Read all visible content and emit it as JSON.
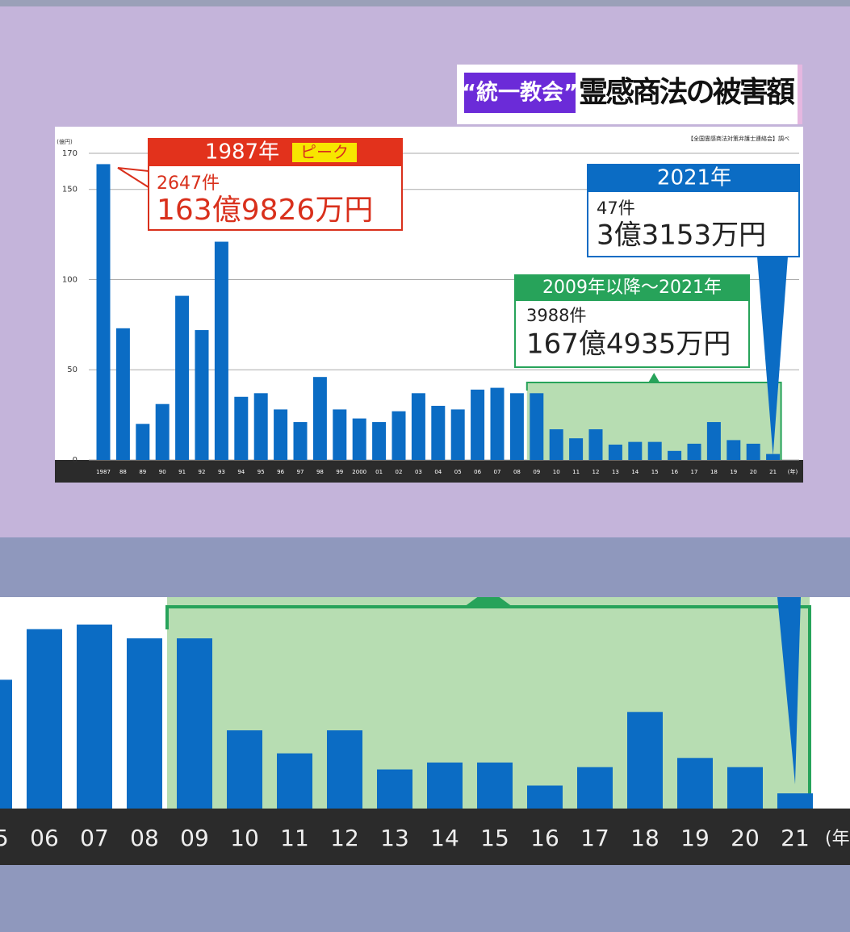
{
  "chart_data": {
    "type": "bar",
    "title_tag": "“統一教会”",
    "title": "霊感商法の被害額",
    "source": "【全国霊感商法対策弁護士連絡会】調べ",
    "y_unit": "(億円)",
    "x_unit": "(年)",
    "color": "#0b6cc4",
    "grid": true,
    "ylim": [
      0,
      170
    ],
    "yticks": [
      0,
      50,
      100,
      150,
      170
    ],
    "categories": [
      "1987",
      "88",
      "89",
      "90",
      "91",
      "92",
      "93",
      "94",
      "95",
      "96",
      "97",
      "98",
      "99",
      "2000",
      "01",
      "02",
      "03",
      "04",
      "05",
      "06",
      "07",
      "08",
      "09",
      "10",
      "11",
      "12",
      "13",
      "14",
      "15",
      "16",
      "17",
      "18",
      "19",
      "20",
      "21"
    ],
    "values": [
      164,
      73,
      20,
      31,
      91,
      72,
      121,
      35,
      37,
      28,
      21,
      46,
      28,
      23,
      21,
      27,
      37,
      30,
      28,
      39,
      40,
      37,
      37,
      17,
      12,
      17,
      8.5,
      10,
      10,
      5,
      9,
      21,
      11,
      9,
      3.3
    ],
    "annotations": {
      "peak": {
        "header": "1987年",
        "tag": "ピーク",
        "count": "2647件",
        "amount": "163億9826万円"
      },
      "latest": {
        "header": "2021年",
        "count": "47件",
        "amount": "3億3153万円"
      },
      "range": {
        "header": "2009年以降～2021年",
        "count": "3988件",
        "amount": "167億4935万円"
      }
    }
  }
}
